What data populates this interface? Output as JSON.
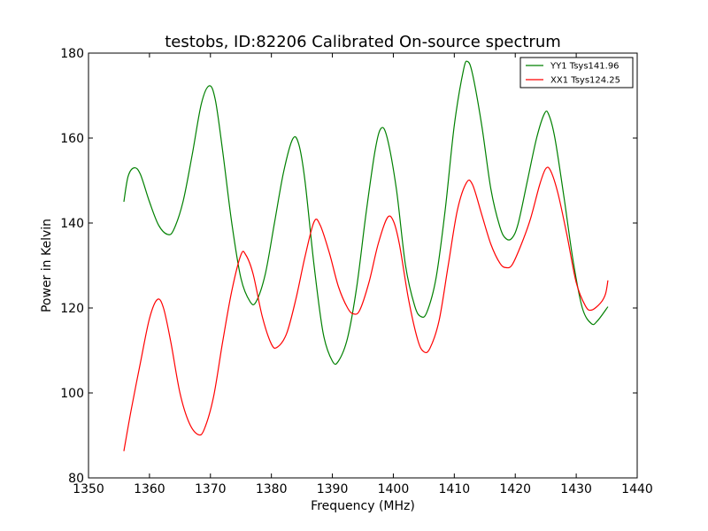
{
  "chart_data": {
    "type": "line",
    "title": "testobs, ID:82206 Calibrated On-source spectrum",
    "xlabel": "Frequency (MHz)",
    "ylabel": "Power in Kelvin",
    "xlim": [
      1350,
      1440
    ],
    "ylim": [
      80,
      180
    ],
    "xticks": [
      1350,
      1360,
      1370,
      1380,
      1390,
      1400,
      1410,
      1420,
      1430,
      1440
    ],
    "yticks": [
      80,
      100,
      120,
      140,
      160,
      180
    ],
    "grid": false,
    "legend_position": "top-right",
    "series": [
      {
        "name": "YY1 Tsys141.96",
        "color": "#008000",
        "points": [
          [
            1355.8,
            145
          ],
          [
            1356.5,
            151
          ],
          [
            1357.5,
            153
          ],
          [
            1358.5,
            151.5
          ],
          [
            1360.0,
            145
          ],
          [
            1361.5,
            139.5
          ],
          [
            1363.0,
            137.3
          ],
          [
            1364.0,
            138.5
          ],
          [
            1365.5,
            145
          ],
          [
            1367.0,
            156
          ],
          [
            1368.5,
            168
          ],
          [
            1369.8,
            172.3
          ],
          [
            1370.8,
            169
          ],
          [
            1372.0,
            157
          ],
          [
            1373.5,
            140
          ],
          [
            1375.0,
            127
          ],
          [
            1376.5,
            121.5
          ],
          [
            1377.5,
            121.5
          ],
          [
            1379.0,
            128
          ],
          [
            1380.5,
            140
          ],
          [
            1382.0,
            152
          ],
          [
            1383.5,
            159.8
          ],
          [
            1384.5,
            158.5
          ],
          [
            1385.5,
            150
          ],
          [
            1387.0,
            130
          ],
          [
            1388.5,
            114
          ],
          [
            1390.0,
            107.5
          ],
          [
            1391.0,
            107.5
          ],
          [
            1392.5,
            113
          ],
          [
            1394.0,
            125
          ],
          [
            1395.5,
            142
          ],
          [
            1397.0,
            157
          ],
          [
            1398.0,
            162.3
          ],
          [
            1399.0,
            160
          ],
          [
            1400.5,
            148
          ],
          [
            1402.0,
            130
          ],
          [
            1403.5,
            120.5
          ],
          [
            1404.5,
            118
          ],
          [
            1405.5,
            119
          ],
          [
            1407.0,
            127
          ],
          [
            1408.5,
            143
          ],
          [
            1410.0,
            163
          ],
          [
            1411.5,
            176
          ],
          [
            1412.2,
            178
          ],
          [
            1413.0,
            175
          ],
          [
            1414.5,
            163
          ],
          [
            1416.0,
            148
          ],
          [
            1417.5,
            139
          ],
          [
            1418.5,
            136.3
          ],
          [
            1419.5,
            136.5
          ],
          [
            1420.5,
            140
          ],
          [
            1422.0,
            150
          ],
          [
            1423.5,
            160
          ],
          [
            1424.8,
            165.8
          ],
          [
            1425.5,
            165.5
          ],
          [
            1426.5,
            160
          ],
          [
            1428.0,
            146
          ],
          [
            1429.5,
            131
          ],
          [
            1431.0,
            120
          ],
          [
            1432.5,
            116.3
          ],
          [
            1433.5,
            117
          ],
          [
            1435.2,
            120.3
          ]
        ]
      },
      {
        "name": "XX1 Tsys124.25",
        "color": "#ff0000",
        "points": [
          [
            1355.8,
            86.3
          ],
          [
            1357.0,
            96
          ],
          [
            1358.5,
            107
          ],
          [
            1360.0,
            117.5
          ],
          [
            1361.3,
            122
          ],
          [
            1362.3,
            120
          ],
          [
            1363.5,
            112
          ],
          [
            1365.0,
            100
          ],
          [
            1366.5,
            93
          ],
          [
            1368.0,
            90.2
          ],
          [
            1369.0,
            91.5
          ],
          [
            1370.5,
            99
          ],
          [
            1372.0,
            112
          ],
          [
            1373.5,
            124
          ],
          [
            1375.0,
            132.5
          ],
          [
            1375.8,
            132.5
          ],
          [
            1377.0,
            128
          ],
          [
            1378.5,
            118
          ],
          [
            1380.0,
            111.5
          ],
          [
            1381.0,
            110.8
          ],
          [
            1382.5,
            114
          ],
          [
            1384.0,
            122
          ],
          [
            1385.5,
            132
          ],
          [
            1387.0,
            140.3
          ],
          [
            1388.0,
            139.5
          ],
          [
            1389.5,
            133
          ],
          [
            1391.0,
            125
          ],
          [
            1392.5,
            120
          ],
          [
            1393.5,
            118.6
          ],
          [
            1394.5,
            119.5
          ],
          [
            1396.0,
            126
          ],
          [
            1397.5,
            135
          ],
          [
            1399.0,
            141.2
          ],
          [
            1400.0,
            140.5
          ],
          [
            1401.0,
            135
          ],
          [
            1402.5,
            122
          ],
          [
            1404.0,
            112.5
          ],
          [
            1405.0,
            109.7
          ],
          [
            1406.0,
            110.5
          ],
          [
            1407.5,
            117
          ],
          [
            1409.0,
            130
          ],
          [
            1410.5,
            143
          ],
          [
            1412.0,
            149.5
          ],
          [
            1413.0,
            149
          ],
          [
            1414.5,
            142
          ],
          [
            1416.0,
            135
          ],
          [
            1417.5,
            130.5
          ],
          [
            1418.5,
            129.5
          ],
          [
            1419.5,
            130.2
          ],
          [
            1421.0,
            135
          ],
          [
            1422.5,
            141
          ],
          [
            1424.0,
            149
          ],
          [
            1425.0,
            152.8
          ],
          [
            1425.8,
            152.3
          ],
          [
            1427.0,
            147
          ],
          [
            1428.5,
            137
          ],
          [
            1430.0,
            126
          ],
          [
            1431.5,
            120.5
          ],
          [
            1432.5,
            119.5
          ],
          [
            1434.0,
            121.2
          ],
          [
            1434.8,
            123.3
          ],
          [
            1435.2,
            126.5
          ]
        ]
      }
    ]
  }
}
